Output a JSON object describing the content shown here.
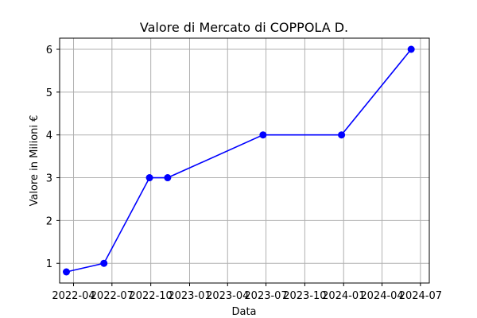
{
  "chart_data": {
    "type": "line",
    "title": "Valore di Mercato di COPPOLA D.",
    "xlabel": "Data",
    "ylabel": "Valore in Milioni €",
    "grid": true,
    "legend": "none",
    "x_ticks": [
      {
        "date": "2022-04-01",
        "label": "2022-04"
      },
      {
        "date": "2022-07-01",
        "label": "2022-07"
      },
      {
        "date": "2022-10-01",
        "label": "2022-10"
      },
      {
        "date": "2023-01-01",
        "label": "2023-01"
      },
      {
        "date": "2023-04-01",
        "label": "2023-04"
      },
      {
        "date": "2023-07-01",
        "label": "2023-07"
      },
      {
        "date": "2023-10-01",
        "label": "2023-10"
      },
      {
        "date": "2024-01-01",
        "label": "2024-01"
      },
      {
        "date": "2024-04-01",
        "label": "2024-04"
      },
      {
        "date": "2024-07-01",
        "label": "2024-07"
      }
    ],
    "y_ticks": [
      1,
      2,
      3,
      4,
      5,
      6
    ],
    "xlim": [
      "2022-02-27",
      "2024-07-22"
    ],
    "ylim": [
      0.54,
      6.26
    ],
    "series": [
      {
        "color": "#0000ff",
        "x": [
          "2022-03-15",
          "2022-06-12",
          "2022-09-28",
          "2022-11-10",
          "2023-06-24",
          "2023-12-27",
          "2024-06-09"
        ],
        "y": [
          0.8,
          1,
          3,
          3,
          4,
          4,
          6
        ]
      }
    ]
  }
}
